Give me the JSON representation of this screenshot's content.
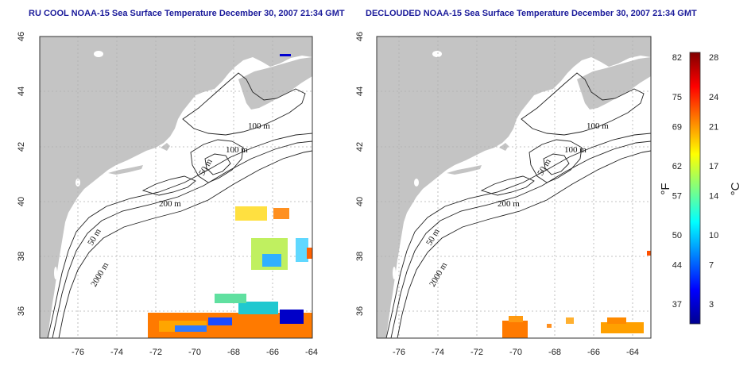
{
  "chart_data": [
    {
      "type": "heatmap",
      "title": "RU COOL NOAA-15 Sea Surface Temperature December 30, 2007 21:34 GMT",
      "xlim": [
        -77,
        -63
      ],
      "ylim": [
        35,
        46
      ],
      "x_ticks": [
        "-76",
        "-74",
        "-72",
        "-70",
        "-68",
        "-66",
        "-64"
      ],
      "y_ticks": [
        "46",
        "44",
        "42",
        "40",
        "38",
        "36"
      ],
      "contour_labels": [
        "100 m",
        "100 m",
        "50 m",
        "200 m",
        "50 m",
        "2000 m"
      ],
      "grid": true
    },
    {
      "type": "heatmap",
      "title": "DECLOUDED NOAA-15 Sea Surface Temperature December 30, 2007 21:34 GMT",
      "xlim": [
        -77,
        -63
      ],
      "ylim": [
        35,
        46
      ],
      "x_ticks": [
        "-76",
        "-74",
        "-72",
        "-70",
        "-68",
        "-66",
        "-64"
      ],
      "y_ticks": [
        "46",
        "44",
        "42",
        "40",
        "38",
        "36"
      ],
      "contour_labels": [
        "100 m",
        "100 m",
        "50 m",
        "200 m",
        "50 m",
        "2000 m"
      ],
      "grid": true
    }
  ],
  "colorbar": {
    "f_label": "°F",
    "c_label": "°C",
    "f_ticks": [
      "82",
      "75",
      "69",
      "62",
      "57",
      "50",
      "44",
      "37"
    ],
    "c_ticks": [
      "28",
      "24",
      "21",
      "17",
      "14",
      "10",
      "7",
      "3"
    ],
    "c_values": [
      28,
      24,
      21,
      17,
      14,
      10,
      7,
      3
    ],
    "range_c": [
      1,
      28.5
    ],
    "colors": [
      "#00008f",
      "#0000ff",
      "#0080ff",
      "#00ffff",
      "#80ff80",
      "#ffff00",
      "#ff8000",
      "#ff0000",
      "#800000"
    ]
  },
  "colors": {
    "land": "#c4c4c4",
    "title_text": "#1a1a9a"
  }
}
